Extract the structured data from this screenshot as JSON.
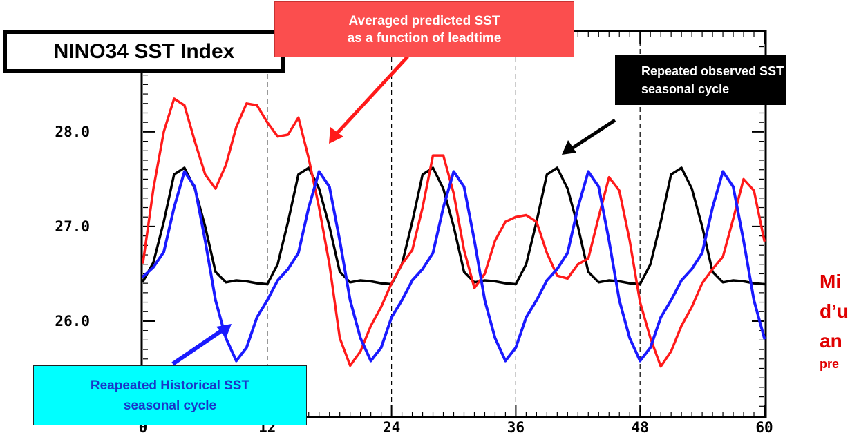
{
  "chart_data": {
    "type": "line",
    "title": "NINO34 SST Index",
    "xlim": [
      0,
      60
    ],
    "ylim": [
      25.0,
      29.05
    ],
    "x_ticks": [
      0,
      12,
      24,
      36,
      48,
      60
    ],
    "y_ticks": [
      26.0,
      27.0,
      28.0
    ],
    "y_tick_labels": [
      "26.0",
      "27.0",
      "28.0"
    ],
    "x_tick_labels": [
      "0",
      "12",
      "24",
      "36",
      "48",
      "60"
    ],
    "grid": "dashed vertical lines at 12, 24, 36, 48",
    "series": [
      {
        "key": "observed",
        "color": "#000000",
        "x": [
          0,
          1,
          2,
          3,
          4,
          5,
          6,
          7,
          8,
          9,
          10,
          11,
          12,
          13,
          14,
          15,
          16,
          17,
          18,
          19,
          20,
          21,
          22,
          23,
          24,
          25,
          26,
          27,
          28,
          29,
          30,
          31,
          32,
          33,
          34,
          35,
          36,
          37,
          38,
          39,
          40,
          41,
          42,
          43,
          44,
          45,
          46,
          47,
          48,
          49,
          50,
          51,
          52,
          53,
          54,
          55,
          56,
          57,
          58,
          59,
          60
        ],
        "values": [
          26.42,
          26.62,
          27.05,
          27.55,
          27.62,
          27.4,
          27.0,
          26.52,
          26.41,
          26.43,
          26.42,
          26.4,
          26.39,
          26.6,
          27.05,
          27.55,
          27.62,
          27.4,
          27.0,
          26.52,
          26.41,
          26.43,
          26.42,
          26.4,
          26.39,
          26.6,
          27.05,
          27.55,
          27.62,
          27.4,
          27.0,
          26.52,
          26.41,
          26.43,
          26.42,
          26.4,
          26.39,
          26.6,
          27.05,
          27.55,
          27.62,
          27.4,
          27.0,
          26.52,
          26.41,
          26.43,
          26.42,
          26.4,
          26.39,
          26.6,
          27.05,
          27.55,
          27.62,
          27.4,
          27.0,
          26.52,
          26.41,
          26.43,
          26.42,
          26.4,
          26.39
        ]
      },
      {
        "key": "historical",
        "color": "#1a1aff",
        "x": [
          0,
          1,
          2,
          3,
          4,
          5,
          6,
          7,
          8,
          9,
          10,
          11,
          12,
          13,
          14,
          15,
          16,
          17,
          18,
          19,
          20,
          21,
          22,
          23,
          24,
          25,
          26,
          27,
          28,
          29,
          30,
          31,
          32,
          33,
          34,
          35,
          36,
          37,
          38,
          39,
          40,
          41,
          42,
          43,
          44,
          45,
          46,
          47,
          48,
          49,
          50,
          51,
          52,
          53,
          54,
          55,
          56,
          57,
          58,
          59,
          60
        ],
        "values": [
          26.47,
          26.57,
          26.73,
          27.2,
          27.58,
          27.42,
          26.85,
          26.22,
          25.82,
          25.58,
          25.72,
          26.04,
          26.22,
          26.43,
          26.55,
          26.72,
          27.2,
          27.58,
          27.42,
          26.85,
          26.22,
          25.82,
          25.58,
          25.72,
          26.04,
          26.22,
          26.43,
          26.55,
          26.72,
          27.2,
          27.58,
          27.42,
          26.85,
          26.22,
          25.82,
          25.58,
          25.72,
          26.04,
          26.22,
          26.43,
          26.55,
          26.72,
          27.2,
          27.58,
          27.42,
          26.85,
          26.22,
          25.82,
          25.58,
          25.72,
          26.04,
          26.22,
          26.43,
          26.55,
          26.72,
          27.2,
          27.58,
          27.42,
          26.85,
          26.22,
          25.82
        ]
      },
      {
        "key": "predicted",
        "color": "#ff1a1a",
        "x": [
          0,
          1,
          2,
          3,
          4,
          5,
          6,
          7,
          8,
          9,
          10,
          11,
          12,
          13,
          14,
          15,
          16,
          17,
          18,
          19,
          20,
          21,
          22,
          23,
          24,
          25,
          26,
          27,
          28,
          29,
          30,
          31,
          32,
          33,
          34,
          35,
          36,
          37,
          38,
          39,
          40,
          41,
          42,
          43,
          44,
          45,
          46,
          47,
          48,
          49,
          50,
          51,
          52,
          53,
          54,
          55,
          56,
          57,
          58,
          59,
          60
        ],
        "values": [
          26.62,
          27.4,
          28.0,
          28.35,
          28.28,
          27.9,
          27.55,
          27.4,
          27.65,
          28.05,
          28.3,
          28.28,
          28.1,
          27.95,
          27.97,
          28.15,
          27.72,
          27.2,
          26.6,
          25.82,
          25.53,
          25.68,
          25.95,
          26.15,
          26.4,
          26.6,
          26.75,
          27.2,
          27.75,
          27.75,
          27.35,
          26.75,
          26.35,
          26.5,
          26.85,
          27.05,
          27.1,
          27.12,
          27.05,
          26.72,
          26.48,
          26.45,
          26.6,
          26.66,
          27.1,
          27.52,
          27.38,
          26.85,
          26.2,
          25.82,
          25.52,
          25.68,
          25.95,
          26.15,
          26.4,
          26.55,
          26.68,
          27.08,
          27.5,
          27.38,
          26.85
        ]
      }
    ]
  },
  "title_box": {
    "text": "NINO34 SST Index"
  },
  "annotations": {
    "predicted": "Averaged predicted SST\nas a function of leadtime",
    "observed": "Repeated observed SST\nseasonal cycle",
    "historical": "Reapeated Historical SST\nseasonal cycle"
  },
  "side_note": {
    "line1": "Mi",
    "line2": "d’u",
    "line3": "an",
    "line4": "pre"
  }
}
